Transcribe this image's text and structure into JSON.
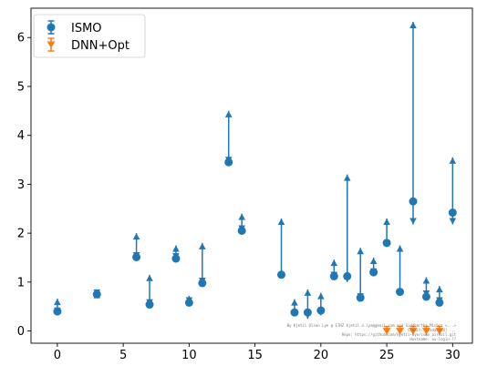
{
  "chart_data": {
    "type": "scatter",
    "xlim": [
      -2,
      31.5
    ],
    "ylim": [
      -0.25,
      6.6
    ],
    "xticks": [
      0,
      5,
      10,
      15,
      20,
      25,
      30
    ],
    "yticks": [
      0,
      1,
      2,
      3,
      4,
      5,
      6
    ],
    "grid": false,
    "legend_position": "top-left",
    "title": "",
    "xlabel": "",
    "ylabel": "",
    "series": [
      {
        "name": "ISMO",
        "color": "#1f77b4",
        "marker": "circle-with-errorbar",
        "points": [
          {
            "x": 0,
            "y": 0.4,
            "lower": 0.35,
            "upper": 0.66
          },
          {
            "x": 3,
            "y": 0.75,
            "lower": 0.72,
            "upper": 0.8
          },
          {
            "x": 6,
            "y": 1.51,
            "lower": 1.48,
            "upper": 2.0
          },
          {
            "x": 7,
            "y": 0.54,
            "lower": 0.52,
            "upper": 1.15
          },
          {
            "x": 9,
            "y": 1.48,
            "lower": 1.46,
            "upper": 1.75
          },
          {
            "x": 10,
            "y": 0.58,
            "lower": 0.56,
            "upper": 0.72
          },
          {
            "x": 11,
            "y": 0.98,
            "lower": 0.96,
            "upper": 1.8
          },
          {
            "x": 13,
            "y": 3.45,
            "lower": 3.43,
            "upper": 4.5
          },
          {
            "x": 14,
            "y": 2.05,
            "lower": 2.03,
            "upper": 2.4
          },
          {
            "x": 17,
            "y": 1.15,
            "lower": 1.08,
            "upper": 2.3
          },
          {
            "x": 18,
            "y": 0.38,
            "lower": 0.3,
            "upper": 0.65
          },
          {
            "x": 19,
            "y": 0.38,
            "lower": 0.25,
            "upper": 0.85
          },
          {
            "x": 20,
            "y": 0.42,
            "lower": 0.32,
            "upper": 0.78
          },
          {
            "x": 21,
            "y": 1.12,
            "lower": 1.08,
            "upper": 1.46
          },
          {
            "x": 22,
            "y": 1.12,
            "lower": 1.0,
            "upper": 3.2
          },
          {
            "x": 23,
            "y": 0.68,
            "lower": 0.64,
            "upper": 1.7
          },
          {
            "x": 24,
            "y": 1.2,
            "lower": 1.15,
            "upper": 1.5
          },
          {
            "x": 25,
            "y": 1.8,
            "lower": 1.72,
            "upper": 2.3
          },
          {
            "x": 26,
            "y": 0.8,
            "lower": 0.72,
            "upper": 1.75
          },
          {
            "x": 27,
            "y": 2.65,
            "lower": 2.18,
            "upper": 6.32
          },
          {
            "x": 28,
            "y": 0.7,
            "lower": 0.7,
            "upper": 1.1
          },
          {
            "x": 29,
            "y": 0.58,
            "lower": 0.56,
            "upper": 0.92
          },
          {
            "x": 30,
            "y": 2.42,
            "lower": 2.18,
            "upper": 3.55
          }
        ]
      },
      {
        "name": "DNN+Opt",
        "color": "#ff7f0e",
        "marker": "triangle-with-errorbar",
        "points": [
          {
            "x": 25,
            "y": 0.0
          },
          {
            "x": 26,
            "y": 0.0
          },
          {
            "x": 27,
            "y": 0.0
          },
          {
            "x": 28,
            "y": 0.0
          },
          {
            "x": 29,
            "y": 0.0
          }
        ]
      }
    ],
    "annotation_lines": [
      "By Kjetil Olsen Lye @ ETHZ kjetil.o.lye@gmail.com and Siddhartha Mishra <...>",
      "Commit: [redacted] ...",
      "Repo: https://github.com/kjetil-lye/ismo_airfoil.git",
      "Hostname: eu-login-??"
    ]
  }
}
